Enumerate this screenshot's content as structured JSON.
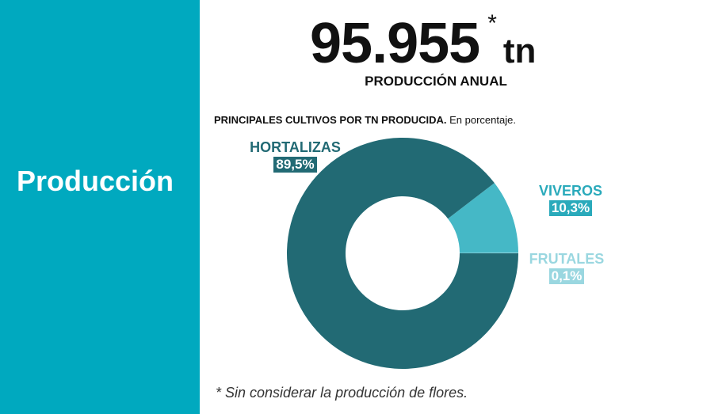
{
  "side_panel": {
    "title": "Producción",
    "color": "#00a9bf"
  },
  "headline": {
    "value": "95.955",
    "asterisk": "*",
    "unit": "tn",
    "subtitle": "PRODUCCIÓN ANUAL"
  },
  "chart_heading": {
    "bold": "PRINCIPALES CULTIVOS POR TN PRODUCIDA.",
    "normal": " En porcentaje."
  },
  "chart_data": {
    "type": "pie",
    "variant": "donut",
    "title": "PRINCIPALES CULTIVOS POR TN PRODUCIDA.",
    "subtitle": "En porcentaje.",
    "slices": [
      {
        "name": "HORTALIZAS",
        "value": 89.5,
        "label": "89,5%",
        "color": "#226a74"
      },
      {
        "name": "VIVEROS",
        "value": 10.3,
        "label": "10,3%",
        "color": "#45b8c6"
      },
      {
        "name": "FRUTALES",
        "value": 0.1,
        "label": "0,1%",
        "color": "#9ad7e0"
      }
    ]
  },
  "footnote": "*  Sin considerar la producción de flores."
}
